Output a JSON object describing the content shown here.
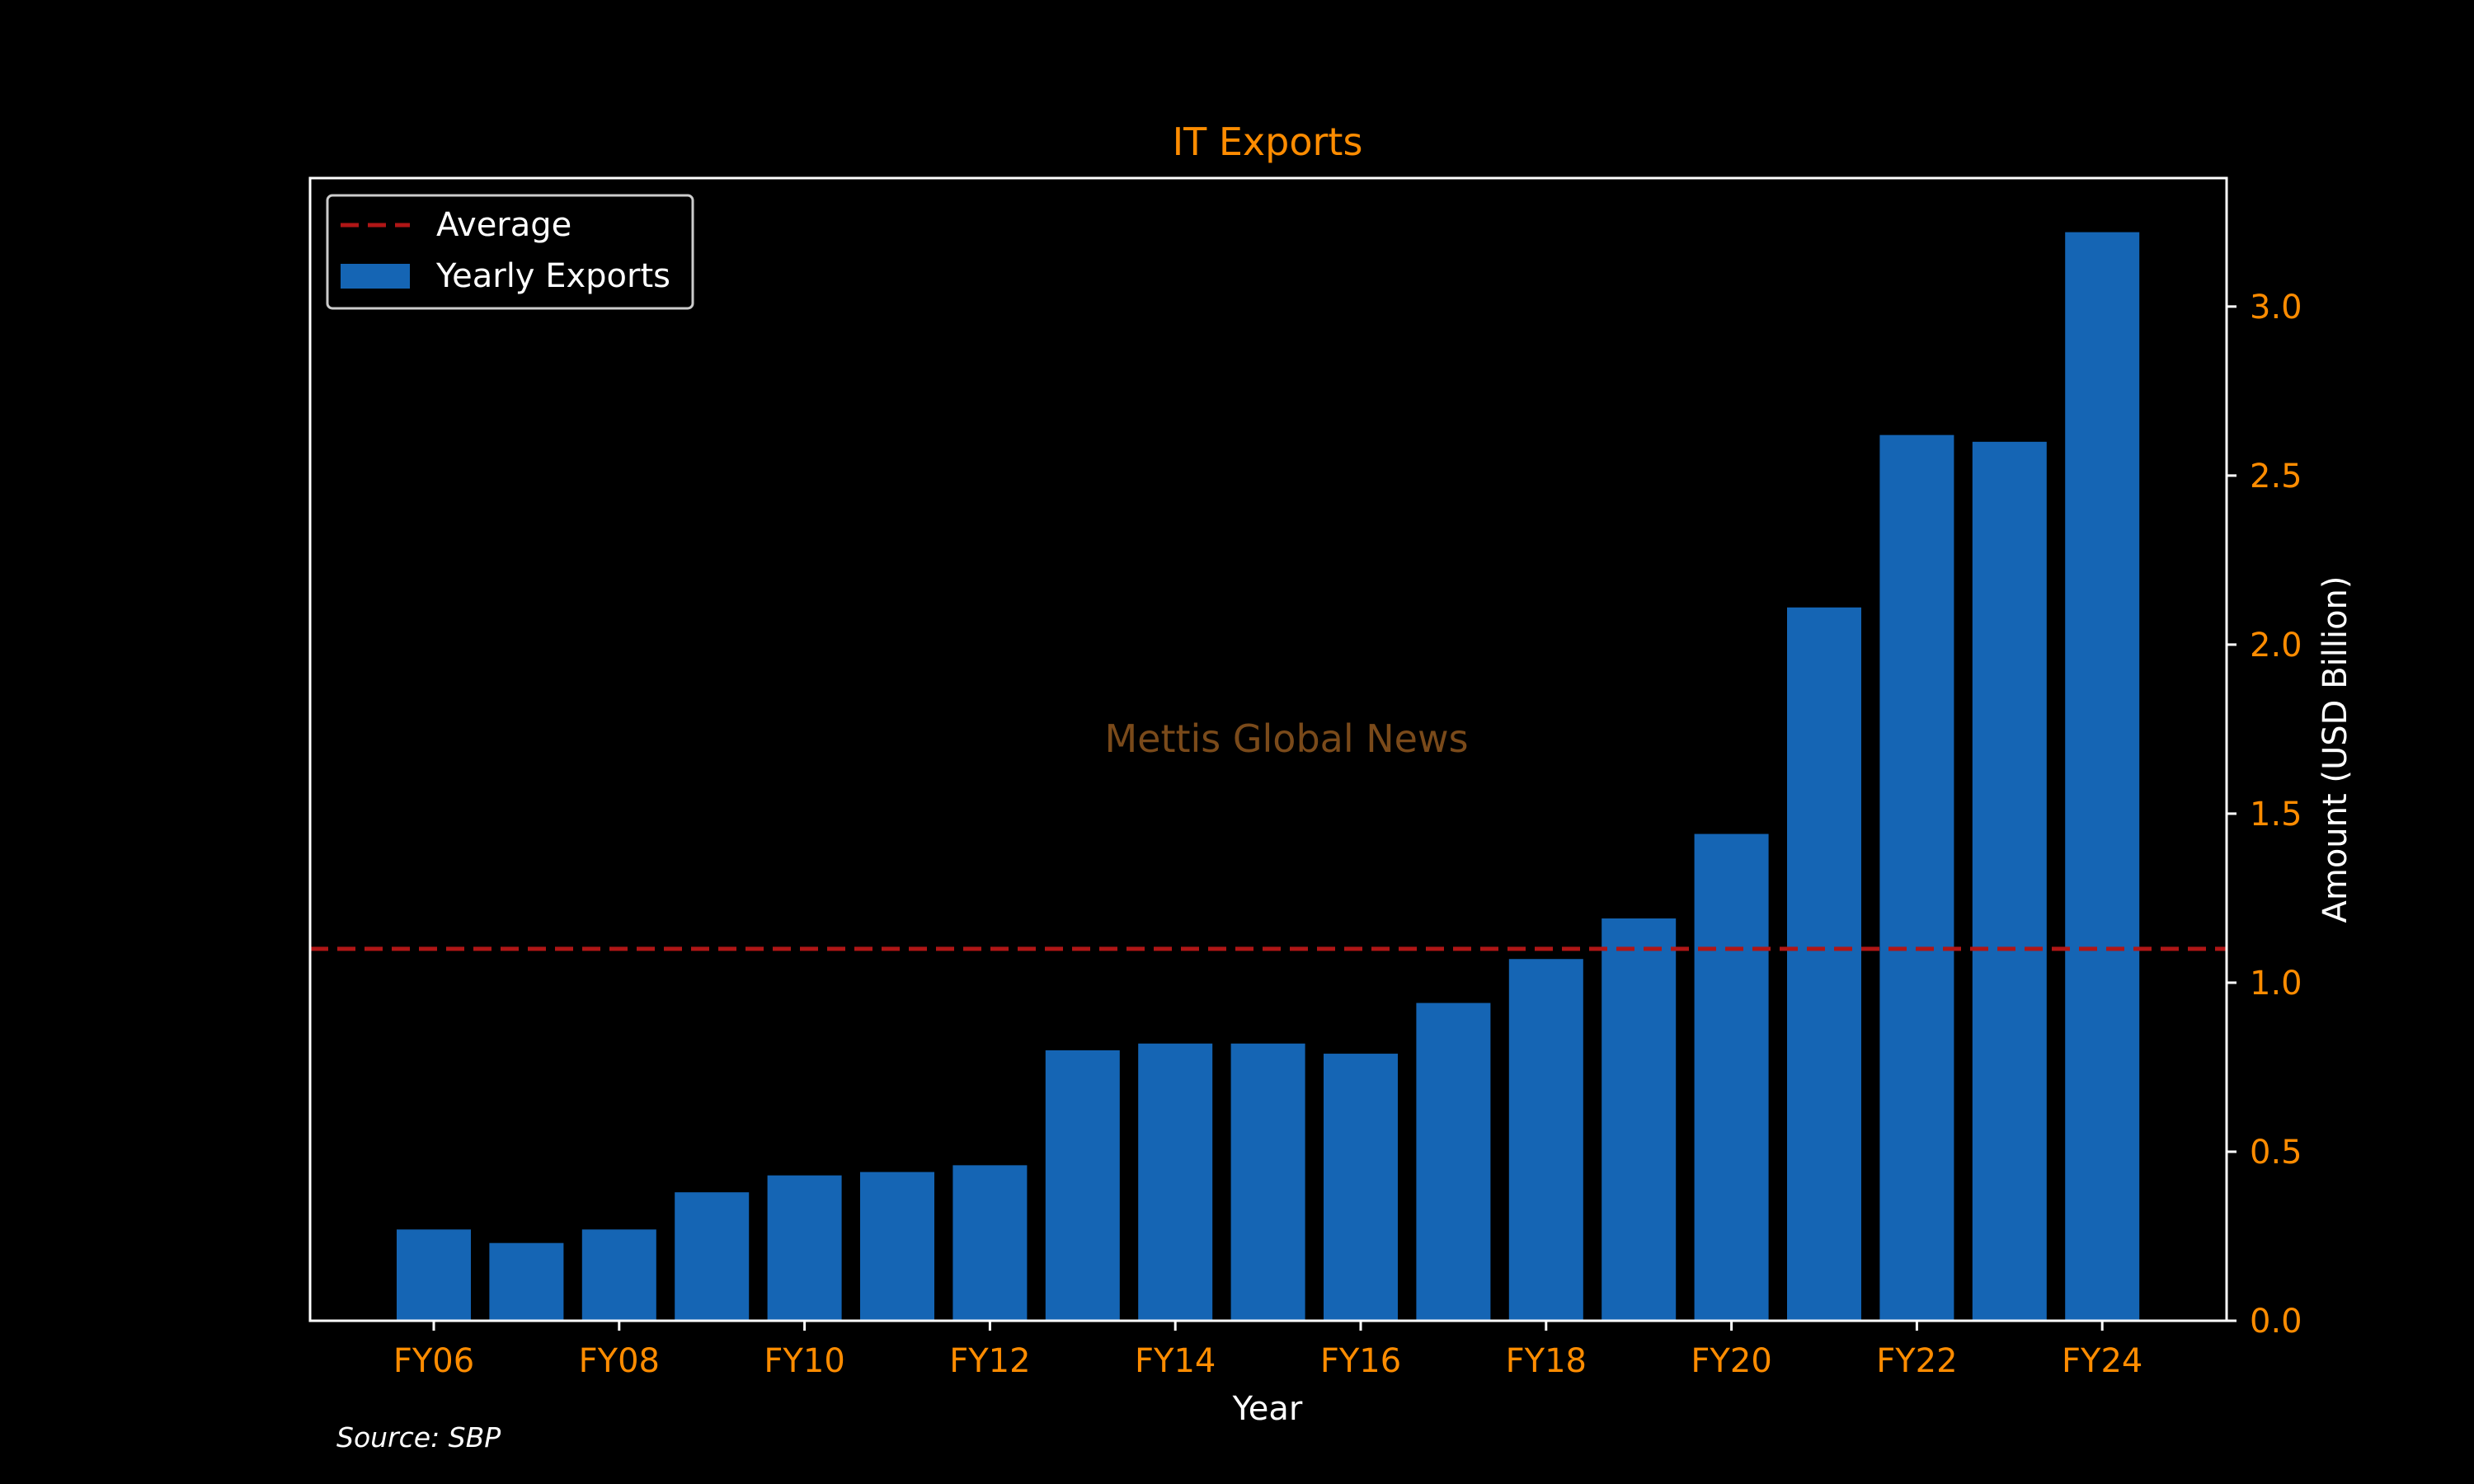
{
  "chart_data": {
    "type": "bar",
    "title": "IT Exports",
    "xlabel": "Year",
    "ylabel": "Amount (USD Billion)",
    "categories": [
      "FY06",
      "FY07",
      "FY08",
      "FY09",
      "FY10",
      "FY11",
      "FY12",
      "FY13",
      "FY14",
      "FY15",
      "FY16",
      "FY17",
      "FY18",
      "FY19",
      "FY20",
      "FY21",
      "FY22",
      "FY23",
      "FY24"
    ],
    "x_tick_labels": [
      "FY06",
      "FY08",
      "FY10",
      "FY12",
      "FY14",
      "FY16",
      "FY18",
      "FY20",
      "FY22",
      "FY24"
    ],
    "series": [
      {
        "name": "Yearly Exports",
        "color": "#1565b4",
        "values": [
          0.27,
          0.23,
          0.27,
          0.38,
          0.43,
          0.44,
          0.46,
          0.8,
          0.82,
          0.82,
          0.79,
          0.94,
          1.07,
          1.19,
          1.44,
          2.11,
          2.62,
          2.6,
          3.22
        ]
      }
    ],
    "average": {
      "name": "Average",
      "value": 1.1,
      "color": "#b01616"
    },
    "y_ticks": [
      "0.0",
      "0.5",
      "1.0",
      "1.5",
      "2.0",
      "2.5",
      "3.0"
    ],
    "ylim": [
      0,
      3.38
    ],
    "y_axis_side": "right",
    "grid": false,
    "legend_position": "top-left",
    "watermark": "Mettis Global News",
    "source": "Source: SBP",
    "colors": {
      "background": "#000000",
      "title": "#ff8c00",
      "tick_labels": "#ff8c00",
      "axis_labels": "#ffffff",
      "frame": "#ffffff",
      "watermark": "#7a4a1a"
    }
  }
}
